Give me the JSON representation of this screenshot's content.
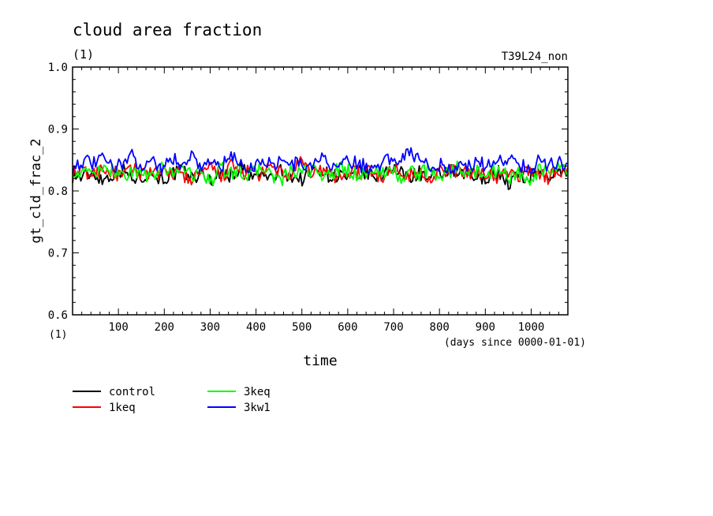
{
  "chart_data": {
    "type": "line",
    "title": "cloud area fraction",
    "units_label": "(1)",
    "experiment_label": "T39L24_non",
    "xlabel": "time",
    "x_units": "(days since 0000-01-01)",
    "x_units_left": "(1)",
    "ylabel": "gt_cld_frac_2",
    "xlim": [
      0,
      1080
    ],
    "ylim": [
      0.6,
      1.0
    ],
    "x_ticks": [
      100,
      200,
      300,
      400,
      500,
      600,
      700,
      800,
      900,
      1000
    ],
    "y_ticks": [
      "0.6",
      "0.7",
      "0.8",
      "0.9",
      "1.0"
    ],
    "series": [
      {
        "name": "control",
        "color": "#000000",
        "values": [
          0.825,
          0.822,
          0.83,
          0.818,
          0.827,
          0.835,
          0.82,
          0.824,
          0.829,
          0.819,
          0.826,
          0.833,
          0.821,
          0.828,
          0.817,
          0.83,
          0.824,
          0.838,
          0.822,
          0.826,
          0.82,
          0.831,
          0.825,
          0.818,
          0.829,
          0.836,
          0.823,
          0.827,
          0.819,
          0.832,
          0.826,
          0.821,
          0.84,
          0.828,
          0.823,
          0.83,
          0.819,
          0.826,
          0.834,
          0.822,
          0.829,
          0.817,
          0.825,
          0.831,
          0.812,
          0.826,
          0.82,
          0.833,
          0.824,
          0.828,
          0.835
        ]
      },
      {
        "name": "1keq",
        "color": "#ff0000",
        "values": [
          0.828,
          0.832,
          0.825,
          0.838,
          0.83,
          0.822,
          0.836,
          0.829,
          0.833,
          0.824,
          0.831,
          0.826,
          0.818,
          0.83,
          0.835,
          0.823,
          0.84,
          0.828,
          0.832,
          0.825,
          0.837,
          0.83,
          0.824,
          0.846,
          0.829,
          0.834,
          0.826,
          0.82,
          0.832,
          0.827,
          0.835,
          0.823,
          0.83,
          0.838,
          0.825,
          0.829,
          0.821,
          0.833,
          0.828,
          0.836,
          0.824,
          0.831,
          0.827,
          0.819,
          0.83,
          0.825,
          0.834,
          0.828,
          0.822,
          0.832,
          0.838
        ]
      },
      {
        "name": "3keq",
        "color": "#00ff00",
        "values": [
          0.83,
          0.826,
          0.834,
          0.828,
          0.837,
          0.824,
          0.832,
          0.827,
          0.822,
          0.835,
          0.829,
          0.84,
          0.825,
          0.831,
          0.818,
          0.836,
          0.828,
          0.833,
          0.824,
          0.839,
          0.827,
          0.815,
          0.831,
          0.826,
          0.835,
          0.829,
          0.822,
          0.838,
          0.83,
          0.825,
          0.833,
          0.828,
          0.836,
          0.821,
          0.831,
          0.827,
          0.834,
          0.824,
          0.83,
          0.838,
          0.826,
          0.832,
          0.828,
          0.835,
          0.822,
          0.83,
          0.807,
          0.833,
          0.826,
          0.838,
          0.83
        ]
      },
      {
        "name": "3kw1",
        "color": "#0000ff",
        "values": [
          0.84,
          0.848,
          0.843,
          0.852,
          0.838,
          0.846,
          0.855,
          0.842,
          0.849,
          0.837,
          0.851,
          0.844,
          0.858,
          0.841,
          0.847,
          0.839,
          0.853,
          0.845,
          0.836,
          0.85,
          0.843,
          0.849,
          0.84,
          0.846,
          0.838,
          0.852,
          0.844,
          0.839,
          0.848,
          0.842,
          0.837,
          0.845,
          0.85,
          0.854,
          0.866,
          0.849,
          0.838,
          0.843,
          0.836,
          0.841,
          0.839,
          0.846,
          0.84,
          0.848,
          0.855,
          0.843,
          0.838,
          0.846,
          0.841,
          0.849,
          0.845
        ]
      }
    ],
    "legend": {
      "placement": "bottom-left",
      "items": [
        "control",
        "1keq",
        "3keq",
        "3kw1"
      ]
    }
  }
}
